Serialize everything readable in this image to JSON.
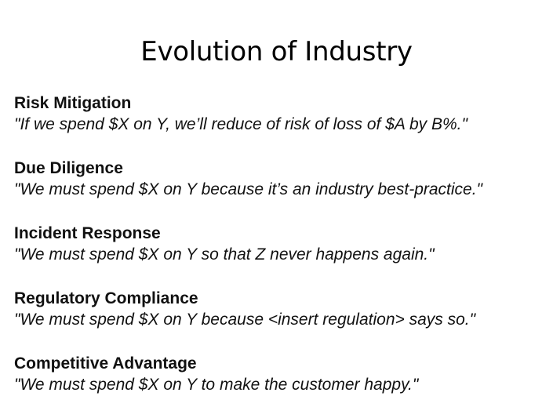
{
  "slide": {
    "title": "Evolution of Industry"
  },
  "items": [
    {
      "heading": "Risk Mitigation",
      "quote": "\"If we spend $X on Y, we’ll reduce of risk of loss of $A by B%.\""
    },
    {
      "heading": "Due Diligence",
      "quote": "\"We must spend $X on Y because it’s an industry best-practice.\""
    },
    {
      "heading": "Incident Response",
      "quote": "\"We must spend $X on Y so that Z never happens again.\""
    },
    {
      "heading": "Regulatory Compliance",
      "quote": "\"We must spend $X on Y because <insert regulation> says so.\""
    },
    {
      "heading": "Competitive Advantage",
      "quote": "\"We must spend $X on Y to make the customer happy.\""
    }
  ]
}
